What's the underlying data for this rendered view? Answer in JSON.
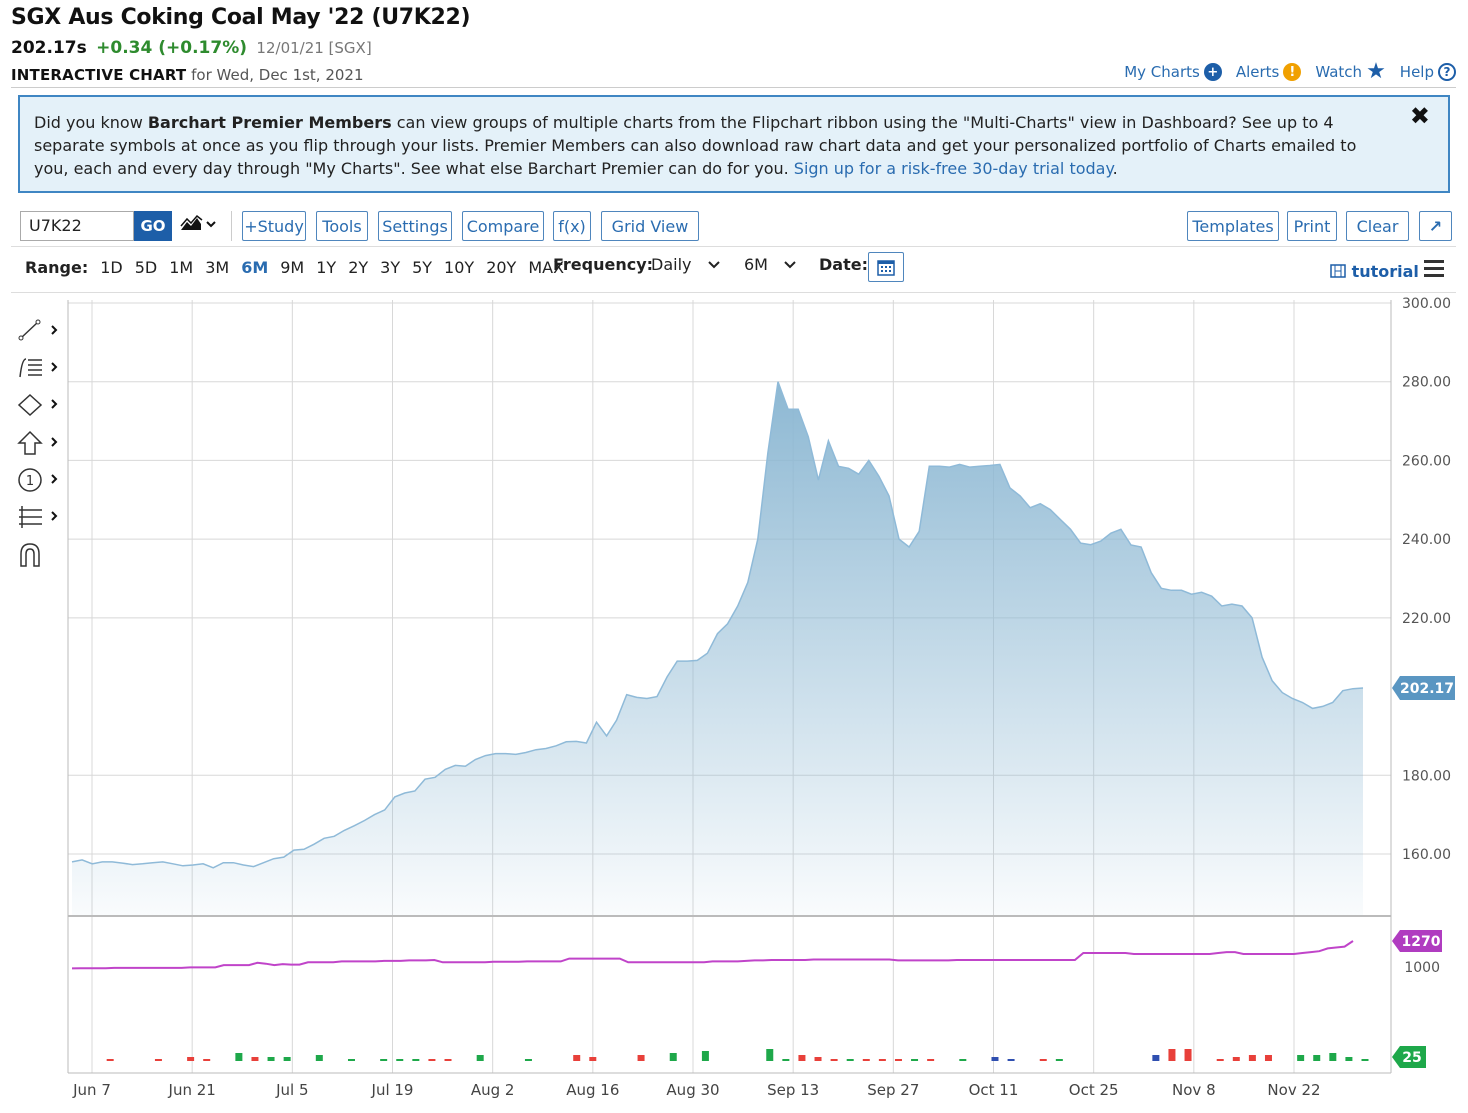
{
  "header": {
    "title": "SGX Aus Coking Coal May '22 (U7K22)",
    "last": "202.17s",
    "change": "+0.34 (+0.17%)",
    "meta": "12/01/21 [SGX]",
    "ic_label": "INTERACTIVE CHART",
    "ic_for": "for Wed, Dec 1st, 2021"
  },
  "toplinks": {
    "mycharts": "My Charts",
    "alerts": "Alerts",
    "watch": "Watch",
    "help": "Help"
  },
  "promo": {
    "text1": "Did you know ",
    "strong": "Barchart Premier Members",
    "text2": " can view groups of multiple charts from the Flipchart ribbon using the \"Multi-Charts\" view in Dashboard? See up to 4 separate symbols at once as you flip through your lists. Premier Members can also download raw chart data and get your personalized portfolio of Charts emailed to you, each and every day through \"My Charts\". See what else Barchart Premier can do for you. ",
    "link": "Sign up for a risk-free 30-day trial today",
    "end": ".",
    "close": "✖"
  },
  "toolbar": {
    "symbol": "U7K22",
    "go": "GO",
    "study": "+Study",
    "tools": "Tools",
    "settings": "Settings",
    "compare": "Compare",
    "fx": "f(x)",
    "grid": "Grid View",
    "templates": "Templates",
    "print": "Print",
    "clear": "Clear",
    "expand": "↗"
  },
  "rangebar": {
    "range_label": "Range:",
    "ranges": [
      "1D",
      "5D",
      "1M",
      "3M",
      "6M",
      "9M",
      "1Y",
      "2Y",
      "3Y",
      "5Y",
      "10Y",
      "20Y",
      "MAX"
    ],
    "active": "6M",
    "freq_label": "Frequency:",
    "freq_value": "Daily",
    "period": "6M",
    "date_label": "Date:",
    "tutorial": "tutorial"
  },
  "colors": {
    "area_line": "#8fbad8",
    "area_top": "#8db8d3",
    "oi_line": "#c044c9",
    "vol_up": "#1ea84a",
    "vol_down": "#e8403a",
    "vol_flat": "#2f4fb0",
    "price_tag": "#5a96c2",
    "oi_tag": "#b03cc0",
    "vol_tag": "#1ea84a"
  },
  "chart_data": {
    "type": "area",
    "x_tick_labels": [
      "Jun 7",
      "Jun 21",
      "Jul 5",
      "Jul 19",
      "Aug 2",
      "Aug 16",
      "Aug 30",
      "Sep 13",
      "Sep 27",
      "Oct 11",
      "Oct 25",
      "Nov 8",
      "Nov 22"
    ],
    "y_tick_labels": [
      "300.00",
      "280.00",
      "260.00",
      "240.00",
      "220.00",
      "202.17",
      "180.00",
      "160.00"
    ],
    "ylim": [
      145,
      300
    ],
    "last_label": "202.17",
    "price": [
      158,
      158.5,
      157.5,
      158,
      158,
      157.7,
      157.3,
      157.5,
      157.8,
      158,
      157.5,
      157,
      157.2,
      157.5,
      156.5,
      157.8,
      157.8,
      157.2,
      156.8,
      157.8,
      158.8,
      159.2,
      161,
      161.2,
      162.5,
      164,
      164.5,
      166,
      167.2,
      168.5,
      170,
      171.2,
      174.5,
      175.5,
      176,
      179,
      179.5,
      181.5,
      182.5,
      182.3,
      184,
      185,
      185.5,
      185.5,
      185.3,
      185.8,
      186.5,
      186.8,
      187.5,
      188.5,
      188.6,
      188.2,
      193.5,
      190,
      194,
      200.5,
      199.8,
      199.5,
      200,
      205,
      209,
      209,
      209.2,
      211,
      216,
      218.5,
      223,
      229,
      240,
      262,
      280,
      273,
      273,
      266,
      255,
      265,
      258.5,
      258,
      256.5,
      260,
      256,
      251,
      240,
      238,
      242,
      258.5,
      258.5,
      258.3,
      259,
      258.3,
      258.5,
      258.7,
      259,
      253,
      251,
      248,
      249,
      247.5,
      245,
      242.5,
      239,
      238.6,
      239.5,
      241.5,
      242.5,
      238.5,
      238,
      231.5,
      227.5,
      227,
      227,
      226,
      226.5,
      225.5,
      223,
      223.5,
      223,
      220,
      210,
      204,
      201,
      199.5,
      198.5,
      197,
      197.5,
      198.5,
      201.5,
      202,
      202.17
    ],
    "open_interest_label": "1270",
    "open_interest_tick": "1000",
    "open_interest": [
      975,
      975,
      975,
      975,
      975,
      980,
      980,
      980,
      980,
      980,
      980,
      980,
      980,
      980,
      985,
      985,
      985,
      985,
      1010,
      1010,
      1010,
      1010,
      1035,
      1025,
      1010,
      1020,
      1015,
      1015,
      1040,
      1040,
      1040,
      1040,
      1050,
      1050,
      1050,
      1050,
      1050,
      1055,
      1055,
      1055,
      1060,
      1060,
      1060,
      1065,
      1040,
      1040,
      1040,
      1040,
      1040,
      1040,
      1045,
      1045,
      1045,
      1045,
      1050,
      1050,
      1050,
      1050,
      1050,
      1080,
      1080,
      1080,
      1080,
      1080,
      1080,
      1080,
      1040,
      1040,
      1040,
      1040,
      1040,
      1040,
      1040,
      1040,
      1040,
      1040,
      1050,
      1050,
      1050,
      1050,
      1055,
      1060,
      1060,
      1065,
      1065,
      1065,
      1065,
      1065,
      1070,
      1070,
      1070,
      1070,
      1070,
      1070,
      1070,
      1070,
      1070,
      1070,
      1060,
      1060,
      1060,
      1060,
      1060,
      1060,
      1060,
      1065,
      1065,
      1065,
      1065,
      1065,
      1065,
      1065,
      1065,
      1065,
      1065,
      1065,
      1065,
      1065,
      1065,
      1065,
      1140,
      1140,
      1140,
      1140,
      1140,
      1140,
      1130,
      1130,
      1130,
      1130,
      1130,
      1130,
      1130,
      1130,
      1130,
      1130,
      1140,
      1150,
      1150,
      1130,
      1130,
      1130,
      1130,
      1130,
      1130,
      1130,
      1140,
      1150,
      1160,
      1190,
      1200,
      1210,
      1270
    ],
    "volume_label": "25",
    "volume": [
      [
        0,
        0,
        "up"
      ],
      [
        2,
        1,
        "down"
      ],
      [
        5,
        1,
        "down"
      ],
      [
        7,
        2,
        "down"
      ],
      [
        8,
        1,
        "down"
      ],
      [
        10,
        4,
        "up"
      ],
      [
        11,
        2,
        "down"
      ],
      [
        12,
        2,
        "up"
      ],
      [
        13,
        2,
        "up"
      ],
      [
        15,
        3,
        "up"
      ],
      [
        17,
        1,
        "up"
      ],
      [
        19,
        1,
        "up"
      ],
      [
        20,
        1,
        "up"
      ],
      [
        21,
        1,
        "up"
      ],
      [
        22,
        1,
        "down"
      ],
      [
        23,
        1,
        "down"
      ],
      [
        25,
        3,
        "up"
      ],
      [
        28,
        1,
        "up"
      ],
      [
        31,
        3,
        "down"
      ],
      [
        32,
        2,
        "down"
      ],
      [
        35,
        3,
        "down"
      ],
      [
        37,
        4,
        "up"
      ],
      [
        39,
        5,
        "up"
      ],
      [
        43,
        6,
        "up"
      ],
      [
        44,
        1,
        "up"
      ],
      [
        45,
        3,
        "down"
      ],
      [
        46,
        2,
        "down"
      ],
      [
        47,
        1,
        "down"
      ],
      [
        48,
        1,
        "up"
      ],
      [
        49,
        1,
        "down"
      ],
      [
        50,
        1,
        "down"
      ],
      [
        51,
        1,
        "down"
      ],
      [
        52,
        1,
        "up"
      ],
      [
        53,
        1,
        "down"
      ],
      [
        55,
        1,
        "up"
      ],
      [
        57,
        2,
        "flat"
      ],
      [
        58,
        1,
        "flat"
      ],
      [
        60,
        1,
        "down"
      ],
      [
        61,
        1,
        "up"
      ],
      [
        67,
        3,
        "flat"
      ],
      [
        68,
        6,
        "down"
      ],
      [
        69,
        6,
        "down"
      ],
      [
        71,
        1,
        "down"
      ],
      [
        72,
        2,
        "down"
      ],
      [
        73,
        3,
        "down"
      ],
      [
        74,
        3,
        "down"
      ],
      [
        76,
        3,
        "up"
      ],
      [
        77,
        3,
        "up"
      ],
      [
        78,
        4,
        "up"
      ],
      [
        79,
        2,
        "up"
      ],
      [
        80,
        1,
        "up"
      ]
    ]
  }
}
